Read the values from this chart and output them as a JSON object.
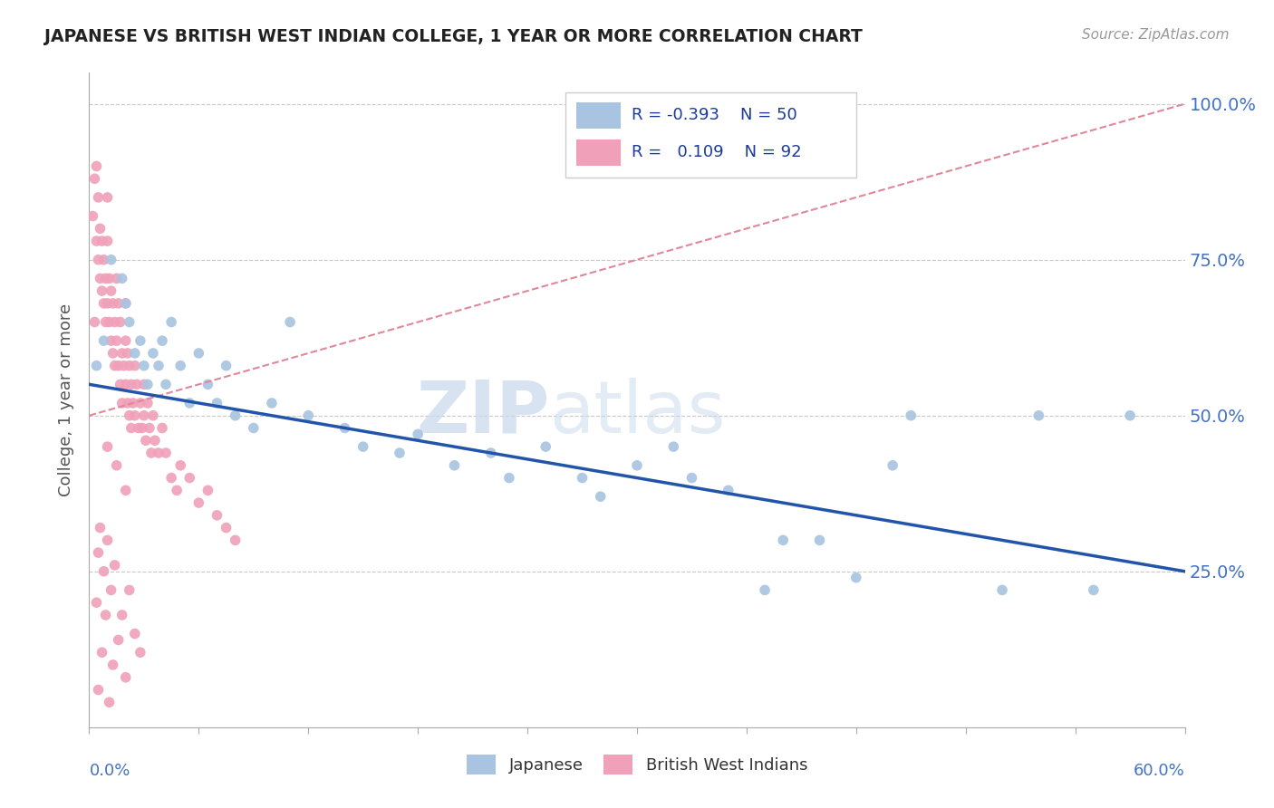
{
  "title": "JAPANESE VS BRITISH WEST INDIAN COLLEGE, 1 YEAR OR MORE CORRELATION CHART",
  "source_text": "Source: ZipAtlas.com",
  "ylabel": "College, 1 year or more",
  "legend_label_1": "Japanese",
  "legend_label_2": "British West Indians",
  "r1": "-0.393",
  "n1": "50",
  "r2": "0.109",
  "n2": "92",
  "watermark_zip": "ZIP",
  "watermark_atlas": "atlas",
  "xmin": 0.0,
  "xmax": 60.0,
  "ymin": 0.0,
  "ymax": 105.0,
  "yticks": [
    25.0,
    50.0,
    75.0,
    100.0
  ],
  "color_japanese": "#a8c4e0",
  "color_bwi": "#f0a0b8",
  "color_line_japanese": "#2255aa",
  "color_line_bwi": "#e08898",
  "color_title": "#222222",
  "color_axis_labels": "#4472c4",
  "background_color": "#ffffff",
  "jp_line_y0": 55.0,
  "jp_line_y1": 25.0,
  "bwi_line_y0": 50.0,
  "bwi_line_y1": 100.0,
  "jp_x": [
    0.4,
    0.8,
    1.2,
    1.8,
    2.0,
    2.2,
    2.5,
    2.8,
    3.0,
    3.2,
    3.5,
    3.8,
    4.0,
    4.2,
    4.5,
    5.0,
    5.5,
    6.0,
    6.5,
    7.0,
    7.5,
    8.0,
    9.0,
    10.0,
    11.0,
    12.0,
    14.0,
    15.0,
    17.0,
    18.0,
    20.0,
    22.0,
    23.0,
    25.0,
    27.0,
    28.0,
    30.0,
    32.0,
    33.0,
    35.0,
    37.0,
    38.0,
    40.0,
    42.0,
    44.0,
    45.0,
    50.0,
    52.0,
    55.0,
    57.0
  ],
  "jp_y": [
    58.0,
    62.0,
    75.0,
    72.0,
    68.0,
    65.0,
    60.0,
    62.0,
    58.0,
    55.0,
    60.0,
    58.0,
    62.0,
    55.0,
    65.0,
    58.0,
    52.0,
    60.0,
    55.0,
    52.0,
    58.0,
    50.0,
    48.0,
    52.0,
    65.0,
    50.0,
    48.0,
    45.0,
    44.0,
    47.0,
    42.0,
    44.0,
    40.0,
    45.0,
    40.0,
    37.0,
    42.0,
    45.0,
    40.0,
    38.0,
    22.0,
    30.0,
    30.0,
    24.0,
    42.0,
    50.0,
    22.0,
    50.0,
    22.0,
    50.0
  ],
  "bwi_x": [
    0.2,
    0.3,
    0.4,
    0.4,
    0.5,
    0.5,
    0.6,
    0.6,
    0.7,
    0.7,
    0.8,
    0.8,
    0.9,
    0.9,
    1.0,
    1.0,
    1.0,
    1.1,
    1.1,
    1.2,
    1.2,
    1.3,
    1.3,
    1.4,
    1.4,
    1.5,
    1.5,
    1.6,
    1.6,
    1.7,
    1.7,
    1.8,
    1.8,
    1.9,
    2.0,
    2.0,
    2.0,
    2.1,
    2.1,
    2.2,
    2.2,
    2.3,
    2.3,
    2.4,
    2.5,
    2.5,
    2.6,
    2.7,
    2.8,
    2.9,
    3.0,
    3.0,
    3.1,
    3.2,
    3.3,
    3.4,
    3.5,
    3.6,
    3.8,
    4.0,
    4.2,
    4.5,
    4.8,
    5.0,
    5.5,
    6.0,
    6.5,
    7.0,
    7.5,
    8.0,
    1.0,
    1.5,
    2.0,
    0.5,
    0.8,
    1.2,
    1.8,
    2.5,
    0.6,
    1.0,
    1.4,
    2.2,
    0.4,
    0.9,
    1.6,
    2.8,
    0.7,
    1.3,
    2.0,
    0.5,
    1.1,
    0.3
  ],
  "bwi_y": [
    82.0,
    88.0,
    78.0,
    90.0,
    75.0,
    85.0,
    72.0,
    80.0,
    70.0,
    78.0,
    68.0,
    75.0,
    72.0,
    65.0,
    85.0,
    78.0,
    68.0,
    72.0,
    65.0,
    70.0,
    62.0,
    68.0,
    60.0,
    65.0,
    58.0,
    72.0,
    62.0,
    68.0,
    58.0,
    65.0,
    55.0,
    60.0,
    52.0,
    58.0,
    62.0,
    55.0,
    68.0,
    60.0,
    52.0,
    58.0,
    50.0,
    55.0,
    48.0,
    52.0,
    58.0,
    50.0,
    55.0,
    48.0,
    52.0,
    48.0,
    55.0,
    50.0,
    46.0,
    52.0,
    48.0,
    44.0,
    50.0,
    46.0,
    44.0,
    48.0,
    44.0,
    40.0,
    38.0,
    42.0,
    40.0,
    36.0,
    38.0,
    34.0,
    32.0,
    30.0,
    45.0,
    42.0,
    38.0,
    28.0,
    25.0,
    22.0,
    18.0,
    15.0,
    32.0,
    30.0,
    26.0,
    22.0,
    20.0,
    18.0,
    14.0,
    12.0,
    12.0,
    10.0,
    8.0,
    6.0,
    4.0,
    65.0
  ]
}
